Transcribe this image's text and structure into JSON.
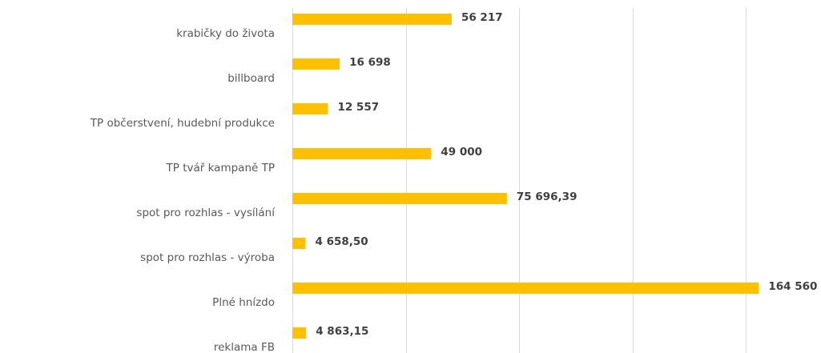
{
  "chart_data": {
    "type": "bar",
    "orientation": "horizontal",
    "categories": [
      "krabičky do života",
      "billboard",
      "TP občerstvení, hudební produkce",
      "TP tvář kampaně TP",
      "spot pro rozhlas - vysílání",
      "spot pro rozhlas - výroba",
      "Plné hnízdo",
      "reklama FB"
    ],
    "values": [
      56217,
      16698,
      12557,
      49000,
      75696.39,
      4658.5,
      164560,
      4863.15
    ],
    "value_labels": [
      "56 217",
      "16 698",
      "12 557",
      "49 000",
      "75 696,39",
      "4 658,50",
      "164 560",
      "4 863,15"
    ],
    "color": "#ffc000",
    "xlim": [
      0,
      180000
    ],
    "xticks": [
      0,
      40000,
      80000,
      120000,
      160000
    ],
    "grid": true
  }
}
